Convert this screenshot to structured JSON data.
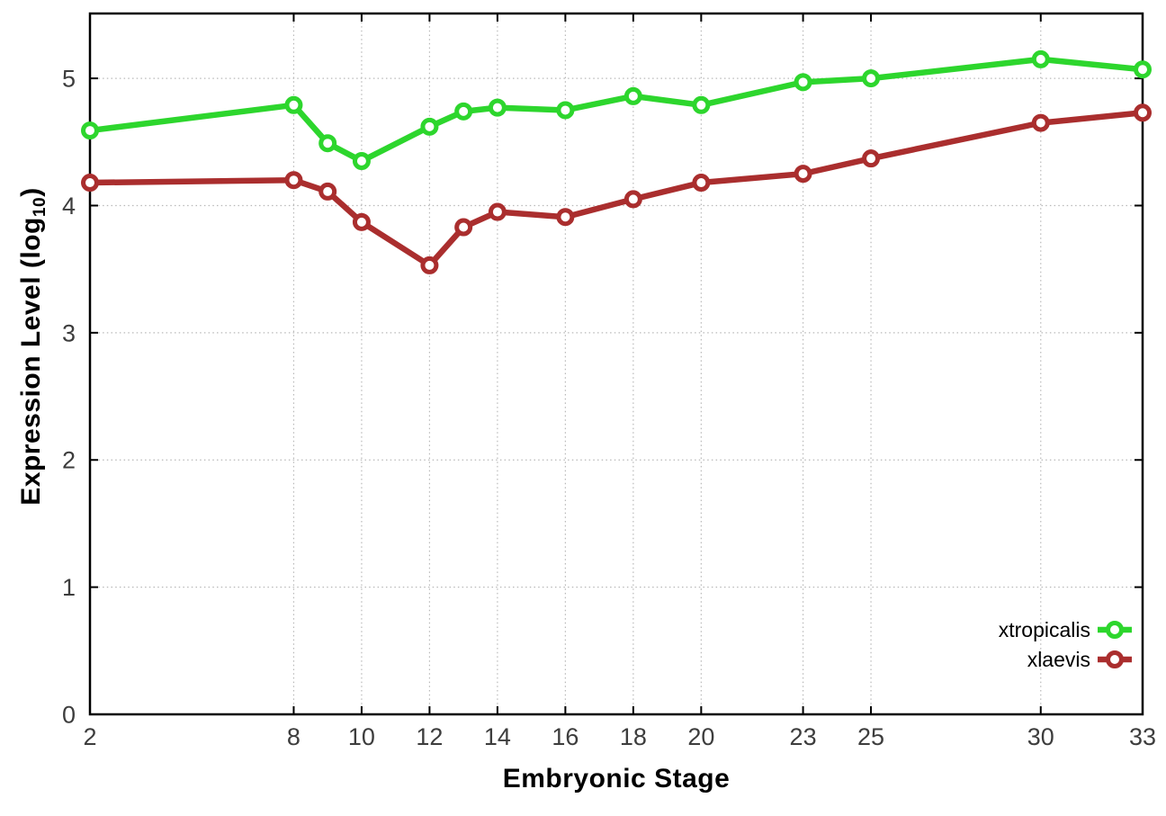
{
  "figure": {
    "background": "#ffffff"
  },
  "style": {
    "grid_color": "#b8b8b8",
    "border_color": "#000000",
    "tick_color": "#000000",
    "tick_label_color": "#3d3d3d",
    "axis_title_color": "#000000",
    "legend_text_color": "#000000",
    "marker_fill": "#ffffff"
  },
  "chart_data": {
    "type": "line",
    "title": "",
    "xlabel": "Embryonic Stage",
    "ylabel": "Expression Level (log10)",
    "ylabel_parts": [
      "Expression Level (log",
      "10",
      ")"
    ],
    "x": [
      2,
      8,
      9,
      10,
      12,
      13,
      14,
      16,
      18,
      20,
      23,
      25,
      30,
      33
    ],
    "series": [
      {
        "name": "xtropicalis",
        "color": "#2dd62d",
        "values": [
          4.59,
          4.79,
          4.49,
          4.35,
          4.62,
          4.74,
          4.77,
          4.75,
          4.86,
          4.79,
          4.97,
          5.0,
          5.15,
          5.07
        ]
      },
      {
        "name": "xlaevis",
        "color": "#aa2e2e",
        "values": [
          4.18,
          4.2,
          4.11,
          3.87,
          3.53,
          3.83,
          3.95,
          3.91,
          4.05,
          4.18,
          4.25,
          4.37,
          4.65,
          4.73
        ]
      }
    ],
    "xticks": [
      2,
      8,
      10,
      12,
      14,
      16,
      18,
      20,
      23,
      25,
      30,
      33
    ],
    "yticks": [
      0,
      1,
      2,
      3,
      4,
      5
    ],
    "xlim": [
      2,
      33
    ],
    "ylim": [
      0,
      5.51
    ],
    "grid": true,
    "grid_style": "dotted",
    "legend_position": "bottom-right",
    "legend_labels": [
      "xtropicalis",
      "xlaevis"
    ]
  }
}
